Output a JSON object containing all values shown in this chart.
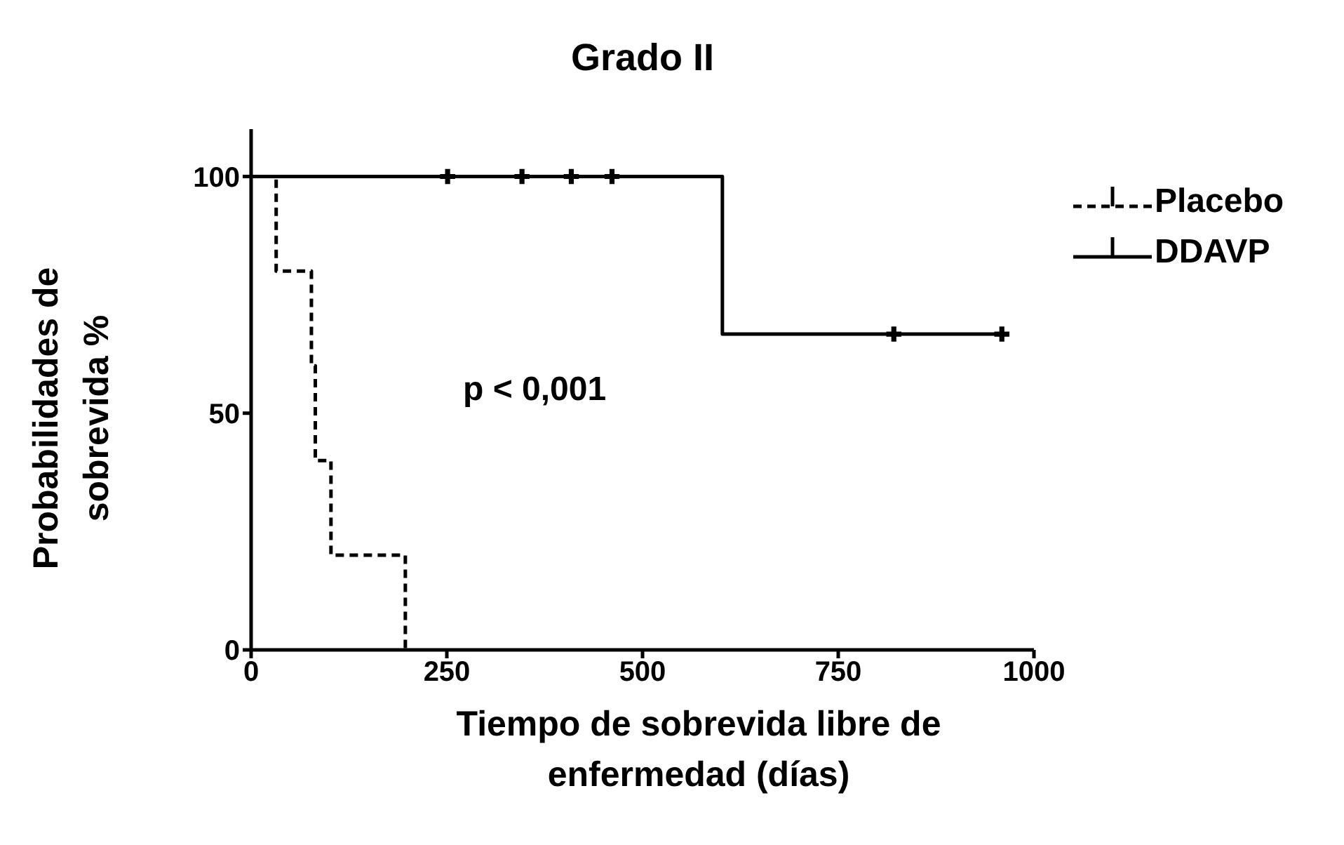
{
  "chart_data": {
    "type": "step",
    "title": "Grado II",
    "xlabel": "Tiempo de sobrevida libre de enfermedad (días)",
    "ylabel": "Probabilidades de sobrevida %",
    "xlim": [
      0,
      1000
    ],
    "xticks": [
      0,
      250,
      500,
      750,
      1000
    ],
    "ylim": [
      0,
      110
    ],
    "yticks": [
      0,
      50,
      100
    ],
    "legend": "top right",
    "grid": false,
    "annotations": [
      "p < 0,001"
    ],
    "series": [
      {
        "name": "Placebo",
        "color": "#000000",
        "line_style": "dashed",
        "marker": "none",
        "x": [
          0,
          32,
          77,
          82,
          102,
          197
        ],
        "values": [
          100,
          80,
          60,
          40,
          20,
          0
        ]
      },
      {
        "name": "DDAVP",
        "color": "#000000",
        "line_style": "solid",
        "marker": "none",
        "x": [
          0,
          602,
          959
        ],
        "values": [
          100,
          66.7,
          66.7
        ]
      },
      {
        "type": "scatter",
        "color": "#000000",
        "marker": "cross",
        "x": [
          251,
          346,
          409,
          461,
          821,
          959
        ],
        "values": [
          100,
          100,
          100,
          100,
          66.7,
          66.7
        ]
      }
    ]
  }
}
